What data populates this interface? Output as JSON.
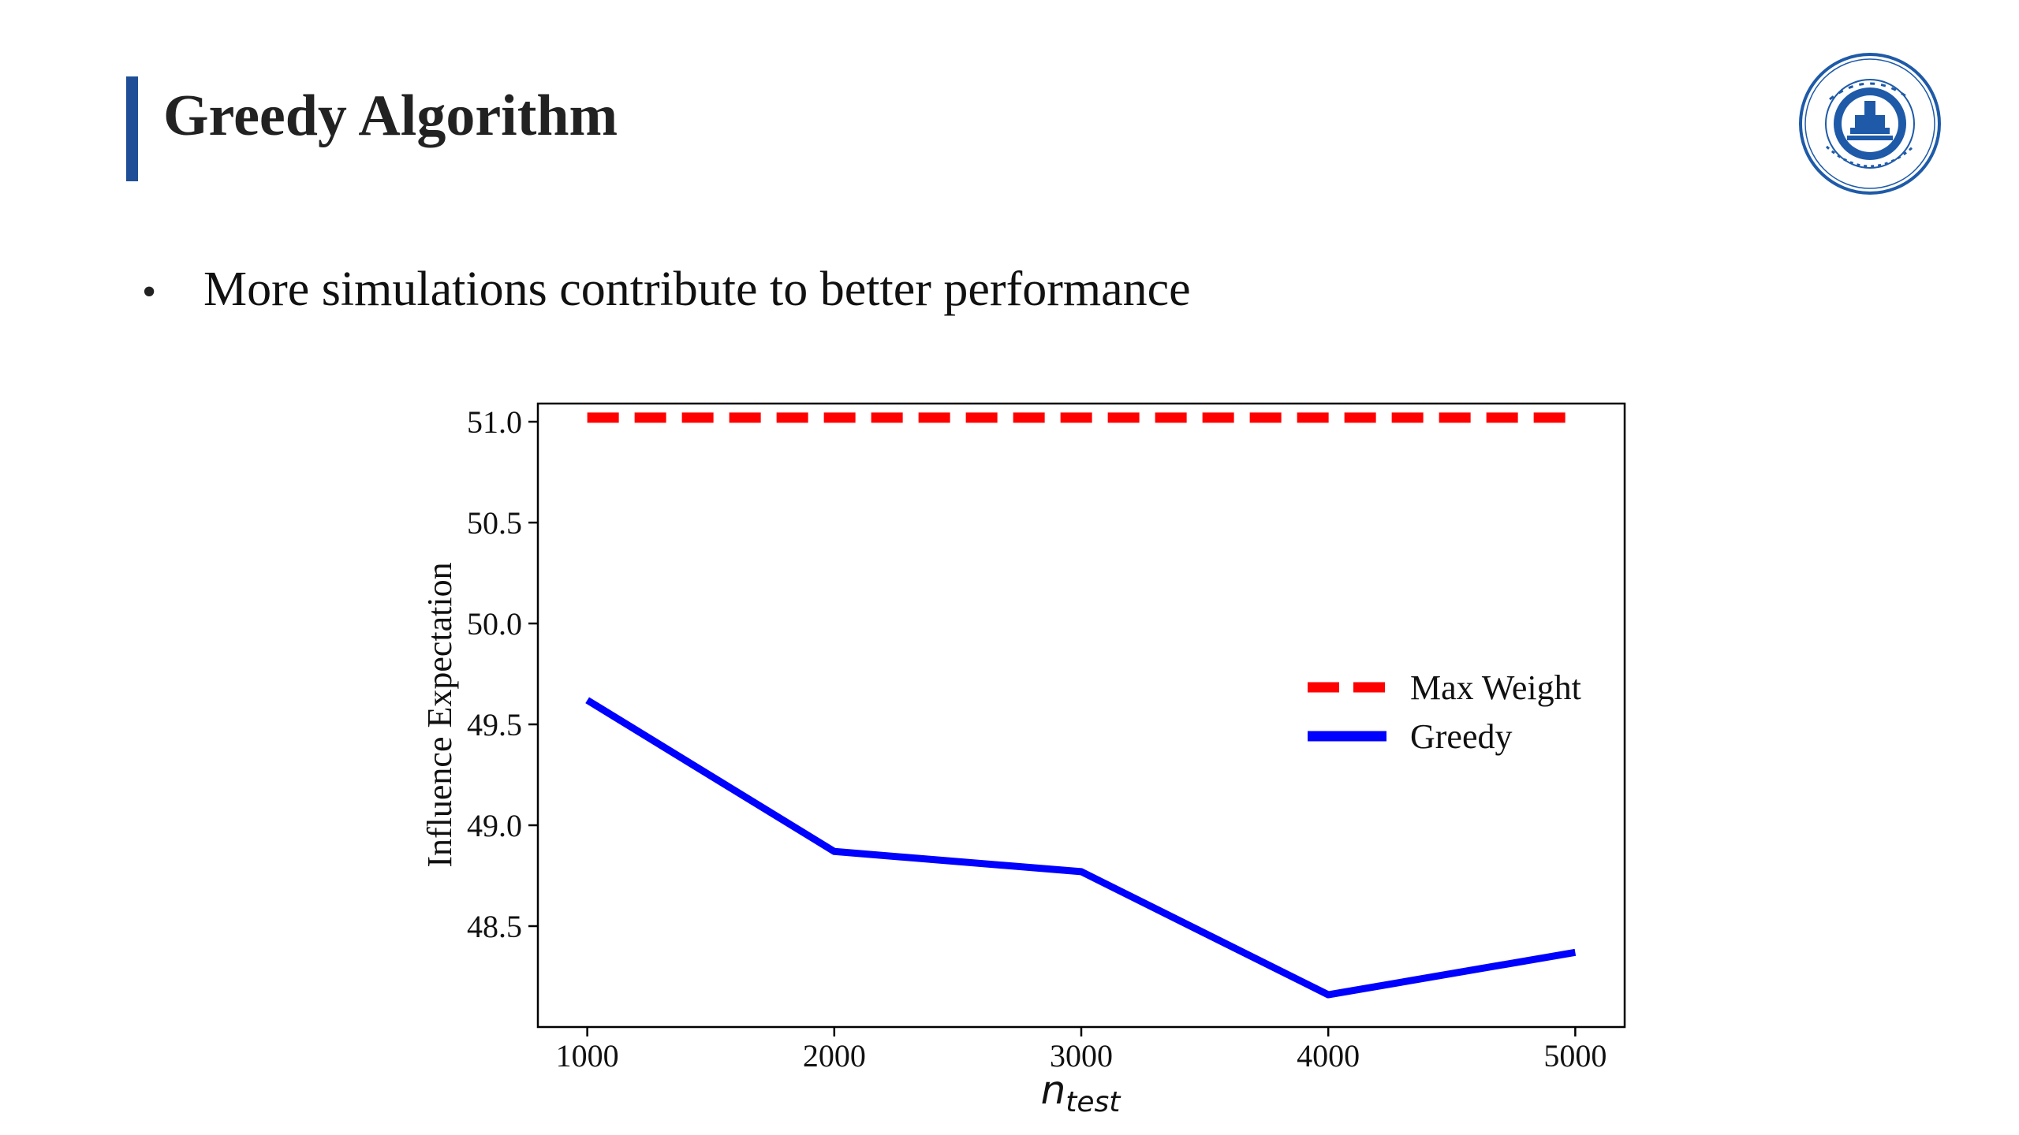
{
  "slide": {
    "title": "Greedy Algorithm",
    "bullet_marker": "•",
    "bullet": "More simulations contribute to better performance",
    "accent_color": "#1f4e96",
    "logo_icon": "university-seal-icon",
    "logo_color": "#1e5aa8"
  },
  "chart_data": {
    "type": "line",
    "title": "",
    "xlabel": "n_test",
    "xlabel_main": "n",
    "xlabel_sub": "test",
    "ylabel": "Influence Expectation",
    "x": [
      1000,
      2000,
      3000,
      4000,
      5000
    ],
    "x_ticks": [
      "1000",
      "2000",
      "3000",
      "4000",
      "5000"
    ],
    "y_ticks": [
      "48.5",
      "49.0",
      "49.5",
      "50.0",
      "50.5",
      "51.0"
    ],
    "xlim": [
      800,
      5200
    ],
    "ylim": [
      48.0,
      51.09
    ],
    "grid": false,
    "legend_position": "center-right",
    "series": [
      {
        "name": "Max Weight",
        "values": [
          51.02,
          51.02,
          51.02,
          51.02,
          51.02
        ],
        "color": "#ff0000",
        "style": "dashed"
      },
      {
        "name": "Greedy",
        "values": [
          49.62,
          48.87,
          48.77,
          48.16,
          48.37
        ],
        "color": "#0000ff",
        "style": "solid"
      }
    ]
  }
}
